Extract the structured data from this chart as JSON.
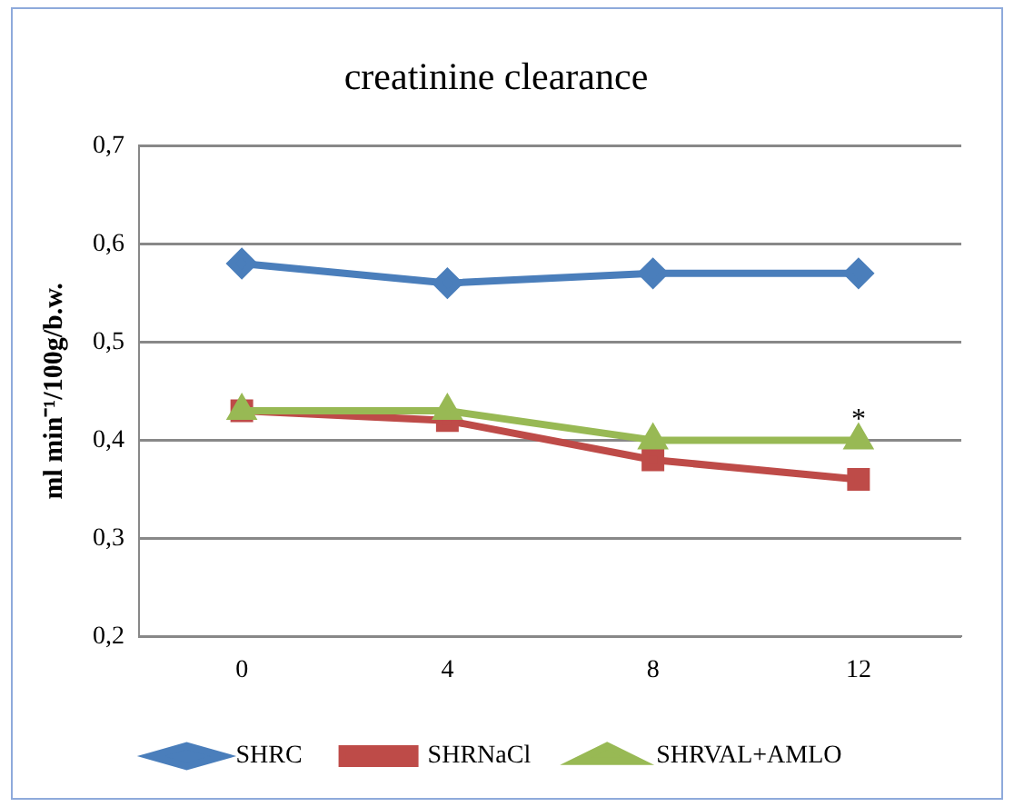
{
  "chart_data": {
    "type": "line",
    "title": "creatinine clearance",
    "ylabel": "ml min⁻¹/100g/b.w.",
    "categories": [
      "0",
      "4",
      "8",
      "12"
    ],
    "series": [
      {
        "name": "SHRC",
        "color": "#4a7ebb",
        "values": [
          0.58,
          0.56,
          0.57,
          0.57
        ],
        "marker": "diamond"
      },
      {
        "name": "SHRNaCl",
        "color": "#be4b48",
        "values": [
          0.43,
          0.42,
          0.38,
          0.36
        ],
        "marker": "square"
      },
      {
        "name": "SHRVAL+AMLO",
        "color": "#98b954",
        "values": [
          0.43,
          0.43,
          0.4,
          0.4
        ],
        "marker": "triangle"
      }
    ],
    "ylim": [
      0.2,
      0.7
    ],
    "yticks": [
      {
        "value": 0.2,
        "label": "0,2"
      },
      {
        "value": 0.3,
        "label": "0,3"
      },
      {
        "value": 0.4,
        "label": "0,4"
      },
      {
        "value": 0.5,
        "label": "0,5"
      },
      {
        "value": 0.6,
        "label": "0,6"
      },
      {
        "value": 0.7,
        "label": "0,7"
      }
    ],
    "grid": "y",
    "legend": "bottom",
    "line_style": "solid",
    "annotations": [
      {
        "text": "*",
        "x": "12",
        "y": 0.42
      }
    ]
  }
}
